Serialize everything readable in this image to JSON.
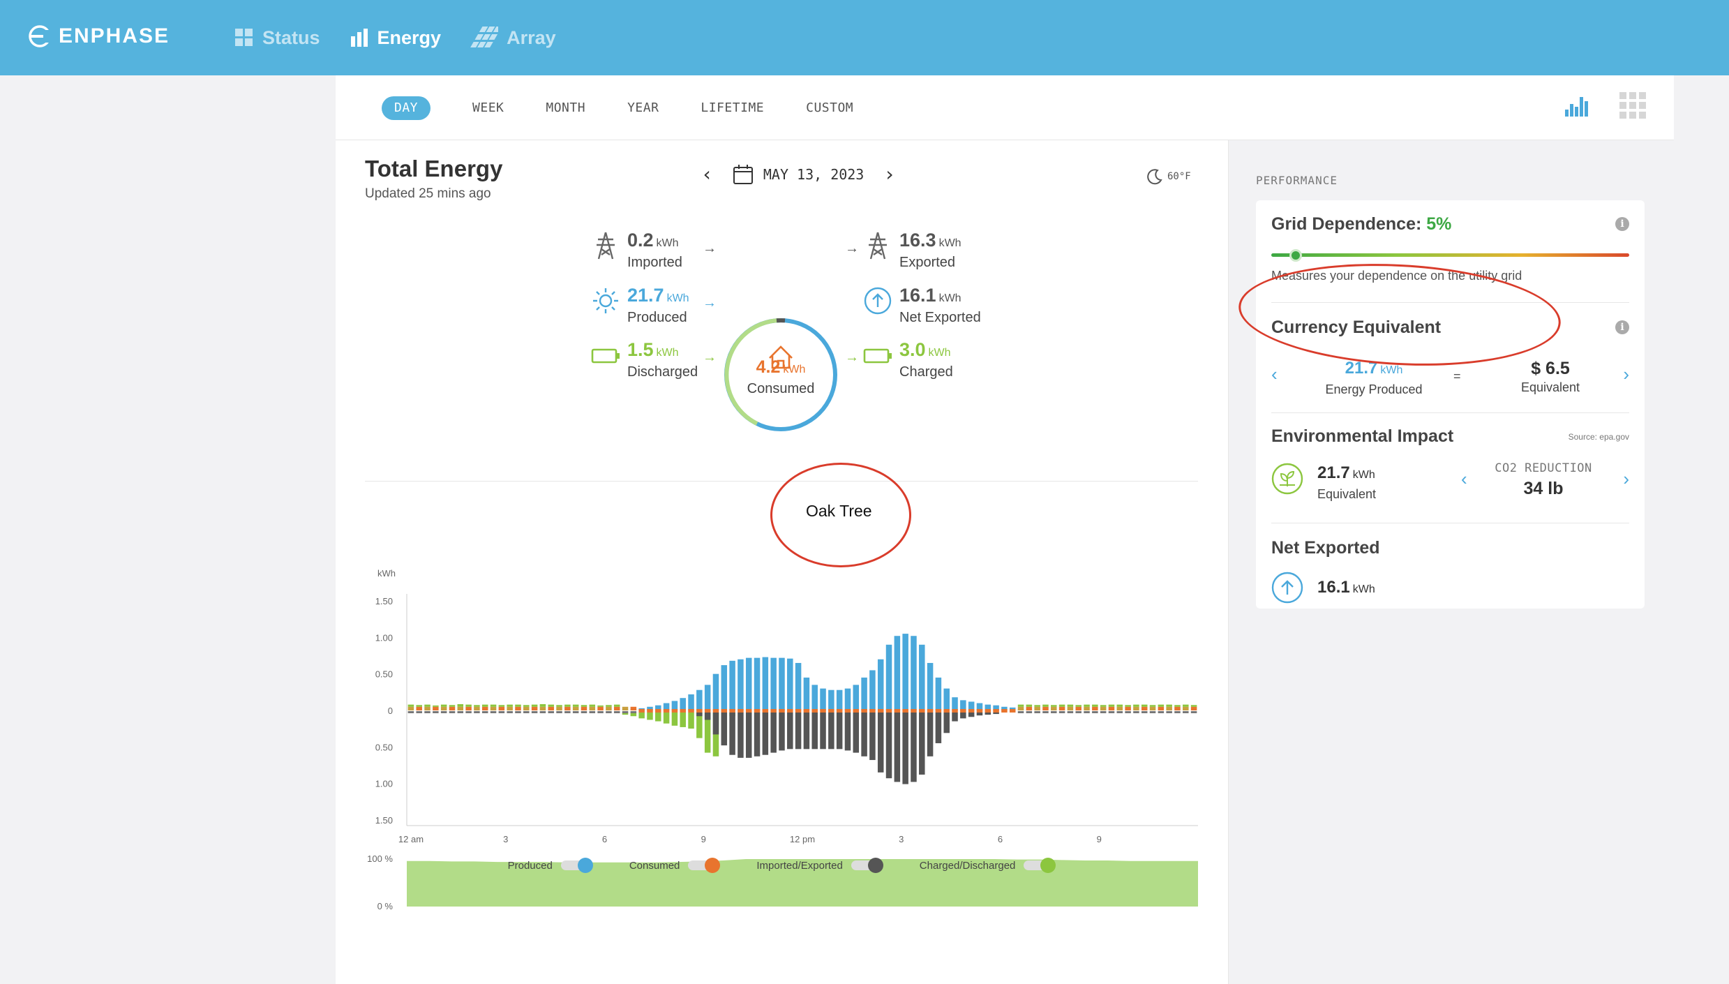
{
  "header": {
    "brand": "ENPHASE",
    "nav": [
      {
        "label": "Status",
        "icon": "grid-icon"
      },
      {
        "label": "Energy",
        "icon": "bar-chart-icon"
      },
      {
        "label": "Array",
        "icon": "panels-icon"
      }
    ]
  },
  "period_tabs": [
    "DAY",
    "WEEK",
    "MONTH",
    "YEAR",
    "LIFETIME",
    "CUSTOM"
  ],
  "active_period": "DAY",
  "main": {
    "title": "Total Energy",
    "updated": "Updated 25 mins ago",
    "date": "MAY 13, 2023",
    "temperature": "60°F"
  },
  "summary": {
    "imported": {
      "value": "0.2",
      "unit": "kWh",
      "label": "Imported"
    },
    "produced": {
      "value": "21.7",
      "unit": "kWh",
      "label": "Produced"
    },
    "discharged": {
      "value": "1.5",
      "unit": "kWh",
      "label": "Discharged"
    },
    "exported": {
      "value": "16.3",
      "unit": "kWh",
      "label": "Exported"
    },
    "net_exported": {
      "value": "16.1",
      "unit": "kWh",
      "label": "Net Exported"
    },
    "charged": {
      "value": "3.0",
      "unit": "kWh",
      "label": "Charged"
    },
    "consumed": {
      "value": "4.2",
      "unit": "kWh",
      "label": "Consumed"
    }
  },
  "chart_data": {
    "type": "bar",
    "ylabel": "kWh",
    "y_ticks": [
      "1.50",
      "1.00",
      "0.50",
      "0",
      "0.50",
      "1.00",
      "1.50"
    ],
    "ylim": [
      -1.5,
      1.5
    ],
    "x_ticks": [
      "12 am",
      "3",
      "6",
      "9",
      "12 pm",
      "3",
      "6",
      "9"
    ],
    "pct_ticks": [
      "100 %",
      "0 %"
    ],
    "intervals": 96,
    "series": [
      {
        "name": "Produced",
        "color": "#4aa8db"
      },
      {
        "name": "Consumed",
        "color": "#e8742e"
      },
      {
        "name": "Imported/Exported",
        "color": "#555555"
      },
      {
        "name": "Charged/Discharged",
        "color": "#8cc63f"
      }
    ],
    "produced": [
      0,
      0,
      0,
      0,
      0,
      0,
      0,
      0,
      0,
      0,
      0,
      0,
      0,
      0,
      0,
      0,
      0,
      0,
      0,
      0,
      0,
      0,
      0,
      0,
      0,
      0,
      0.01,
      0.02,
      0.03,
      0.05,
      0.07,
      0.1,
      0.13,
      0.17,
      0.22,
      0.28,
      0.35,
      0.5,
      0.62,
      0.68,
      0.7,
      0.72,
      0.72,
      0.73,
      0.72,
      0.72,
      0.71,
      0.65,
      0.45,
      0.35,
      0.3,
      0.28,
      0.28,
      0.3,
      0.35,
      0.45,
      0.55,
      0.7,
      0.9,
      1.02,
      1.05,
      1.02,
      0.9,
      0.65,
      0.45,
      0.3,
      0.18,
      0.14,
      0.12,
      0.1,
      0.08,
      0.07,
      0.05,
      0.04,
      0.02,
      0.01,
      0,
      0,
      0,
      0,
      0,
      0,
      0,
      0,
      0,
      0,
      0,
      0,
      0,
      0,
      0,
      0,
      0,
      0,
      0,
      0
    ],
    "consumed": [
      0.05,
      0.05,
      0.05,
      0.05,
      0.05,
      0.05,
      0.05,
      0.05,
      0.05,
      0.05,
      0.05,
      0.05,
      0.05,
      0.05,
      0.05,
      0.05,
      0.05,
      0.05,
      0.05,
      0.05,
      0.05,
      0.05,
      0.05,
      0.05,
      0.05,
      0.05,
      0.05,
      0.05,
      0.05,
      0.05,
      0.05,
      0.05,
      0.05,
      0.05,
      0.05,
      0.05,
      0.05,
      0.05,
      0.05,
      0.05,
      0.05,
      0.05,
      0.05,
      0.05,
      0.05,
      0.05,
      0.05,
      0.05,
      0.05,
      0.05,
      0.05,
      0.05,
      0.05,
      0.05,
      0.05,
      0.05,
      0.05,
      0.05,
      0.05,
      0.05,
      0.05,
      0.05,
      0.05,
      0.05,
      0.05,
      0.05,
      0.05,
      0.05,
      0.05,
      0.05,
      0.05,
      0.05,
      0.05,
      0.05,
      0.05,
      0.05,
      0.05,
      0.05,
      0.05,
      0.05,
      0.05,
      0.05,
      0.05,
      0.05,
      0.05,
      0.05,
      0.05,
      0.05,
      0.05,
      0.05,
      0.05,
      0.05,
      0.05,
      0.05,
      0.05,
      0.05
    ],
    "imported_exported": [
      0,
      0,
      0,
      0,
      0,
      0,
      0,
      0,
      0,
      0,
      0,
      0,
      0,
      0,
      0,
      0,
      0,
      0,
      0,
      0,
      0,
      0,
      0,
      0,
      0,
      0,
      0,
      0,
      0,
      0,
      0,
      0,
      0,
      0,
      0,
      -0.05,
      -0.1,
      -0.3,
      -0.45,
      -0.58,
      -0.62,
      -0.62,
      -0.6,
      -0.58,
      -0.55,
      -0.52,
      -0.5,
      -0.5,
      -0.5,
      -0.5,
      -0.5,
      -0.5,
      -0.5,
      -0.52,
      -0.55,
      -0.6,
      -0.65,
      -0.82,
      -0.9,
      -0.95,
      -0.98,
      -0.95,
      -0.85,
      -0.6,
      -0.42,
      -0.28,
      -0.12,
      -0.08,
      -0.06,
      -0.04,
      -0.03,
      -0.02,
      0,
      0,
      0,
      0,
      0,
      0,
      0,
      0,
      0,
      0,
      0,
      0,
      0,
      0,
      0,
      0,
      0,
      0,
      0,
      0,
      0,
      0,
      0,
      0
    ],
    "charged_discharged": [
      0.05,
      0.04,
      0.05,
      0.03,
      0.05,
      0.04,
      0.06,
      0.05,
      0.04,
      0.05,
      0.05,
      0.04,
      0.05,
      0.05,
      0.04,
      0.05,
      0.06,
      0.05,
      0.04,
      0.05,
      0.05,
      0.04,
      0.05,
      0.03,
      0.04,
      0.05,
      -0.03,
      -0.05,
      -0.08,
      -0.1,
      -0.12,
      -0.15,
      -0.18,
      -0.2,
      -0.22,
      -0.35,
      -0.55,
      -0.6,
      -0.4,
      -0.05,
      0,
      0,
      0,
      0,
      0,
      0,
      0,
      0,
      0,
      0,
      0,
      0,
      0,
      0,
      0,
      0,
      0,
      0,
      0,
      0,
      0,
      0,
      0,
      0,
      0,
      0,
      0,
      0,
      0,
      0,
      0,
      0.02,
      0.03,
      0.04,
      0.05,
      0.05,
      0.04,
      0.05,
      0.04,
      0.05,
      0.05,
      0.04,
      0.05,
      0.05,
      0.04,
      0.05,
      0.05,
      0.04,
      0.05,
      0.05,
      0.04,
      0.05,
      0.05,
      0.04,
      0.05,
      0.04
    ],
    "self_consumption_pct": [
      96,
      96,
      95,
      95,
      94,
      94,
      94,
      93,
      93,
      93,
      93,
      93,
      94,
      95,
      97,
      100,
      100,
      100,
      100,
      100,
      100,
      100,
      100,
      100,
      100,
      100,
      100,
      99,
      99,
      98,
      97,
      97,
      96,
      96,
      96,
      96
    ]
  },
  "performance": {
    "label": "PERFORMANCE",
    "grid_dependence": {
      "title": "Grid Dependence: ",
      "value": "5%",
      "level": 0.05,
      "description": "Measures your dependence on the utility grid"
    },
    "currency": {
      "title": "Currency Equivalent",
      "energy_value": "21.7",
      "energy_unit": "kWh",
      "energy_label": "Energy Produced",
      "equals": "=",
      "money": "$ 6.5",
      "money_label": "Equivalent"
    },
    "environment": {
      "title": "Environmental Impact",
      "source": "Source: epa.gov",
      "value": "21.7",
      "unit": "kWh",
      "label": "Equivalent",
      "co2_label": "CO2 REDUCTION",
      "co2_value": "34 lb"
    },
    "net_exported": {
      "title": "Net Exported",
      "value": "16.1",
      "unit": "kWh"
    }
  },
  "annotations": {
    "oak_tree": "Oak Tree"
  },
  "colors": {
    "brand": "#55b3dd",
    "produced": "#4aa8db",
    "consumed": "#e8742e",
    "grid": "#555555",
    "battery": "#8cc63f",
    "annotation": "#d93c2b"
  }
}
